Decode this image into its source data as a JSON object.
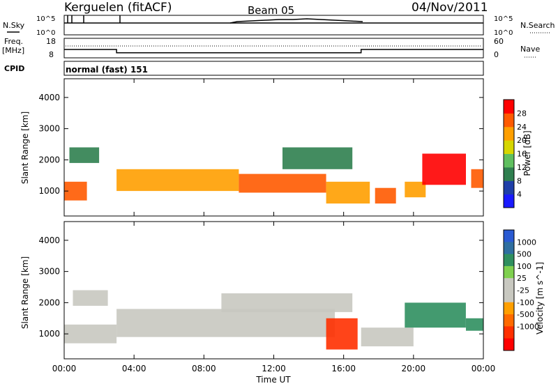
{
  "header": {
    "station": "Kerguelen (fitACF)",
    "beam": "Beam 05",
    "date": "04/Nov/2011"
  },
  "top_panels": {
    "nsky_label": "N.Sky",
    "nsky_ticks": [
      "10^5",
      "10^0"
    ],
    "nsearch_label": "N.Search",
    "nsearch_ticks": [
      "10^5",
      "10^0"
    ],
    "freq_label_1": "Freq.",
    "freq_label_2": "[MHz]",
    "freq_ticks": [
      "18",
      "8"
    ],
    "nave_label": "Nave",
    "nave_ticks": [
      "60",
      "0"
    ],
    "cpid_label": "CPID",
    "cpid_value": "normal (fast) 151",
    "freq_series": {
      "x": [
        0,
        3,
        3,
        17,
        17,
        24
      ],
      "y": [
        12.3,
        12.3,
        10.6,
        10.6,
        12.3,
        12.3
      ]
    }
  },
  "colors": {
    "power_scale": [
      "#1a1aff",
      "#1f3fa8",
      "#2f7f4f",
      "#5fbf5f",
      "#d6d600",
      "#ff9f00",
      "#ff5a00",
      "#ff0000"
    ],
    "velocity_scale": [
      "#2a5ad2",
      "#2f6fa0",
      "#2f8f5f",
      "#7fd04f",
      "#c8c8c0",
      "#c8c8c0",
      "#ff9f00",
      "#ff6a00",
      "#ff3000",
      "#ff0000"
    ]
  },
  "chart_data": [
    {
      "type": "heatmap",
      "title": "Power",
      "ylabel": "Slant Range [km]",
      "xlabel": "Time UT",
      "x_ticks": [
        "00:00",
        "04:00",
        "08:00",
        "12:00",
        "16:00",
        "20:00",
        "00:00"
      ],
      "y_ticks": [
        "1000",
        "2000",
        "3000",
        "4000"
      ],
      "ylim": [
        200,
        4600
      ],
      "colorbar": {
        "label": "Power [dB]",
        "ticks": [
          "4",
          "8",
          "12",
          "16",
          "20",
          "24",
          "28"
        ],
        "range": [
          0,
          32
        ]
      },
      "regions": [
        {
          "t0": 0.0,
          "t1": 1.3,
          "r0": 700,
          "r1": 1300,
          "power": 27
        },
        {
          "t0": 0.3,
          "t1": 2.0,
          "r0": 1900,
          "r1": 2400,
          "power": 10
        },
        {
          "t0": 3.0,
          "t1": 10.0,
          "r0": 1000,
          "r1": 1700,
          "power": 20
        },
        {
          "t0": 10.0,
          "t1": 15.0,
          "r0": 950,
          "r1": 1550,
          "power": 26
        },
        {
          "t0": 12.5,
          "t1": 16.5,
          "r0": 1700,
          "r1": 2400,
          "power": 8
        },
        {
          "t0": 15.0,
          "t1": 17.5,
          "r0": 600,
          "r1": 1300,
          "power": 22
        },
        {
          "t0": 17.8,
          "t1": 19.0,
          "r0": 600,
          "r1": 1100,
          "power": 24
        },
        {
          "t0": 19.5,
          "t1": 20.7,
          "r0": 800,
          "r1": 1300,
          "power": 20
        },
        {
          "t0": 20.5,
          "t1": 23.0,
          "r0": 1200,
          "r1": 2200,
          "power": 28
        },
        {
          "t0": 23.3,
          "t1": 24.0,
          "r0": 1100,
          "r1": 1700,
          "power": 24
        }
      ]
    },
    {
      "type": "heatmap",
      "title": "Velocity",
      "ylabel": "Slant Range [km]",
      "xlabel": "Time UT",
      "x_ticks": [
        "00:00",
        "04:00",
        "08:00",
        "12:00",
        "16:00",
        "20:00",
        "00:00"
      ],
      "y_ticks": [
        "1000",
        "2000",
        "3000",
        "4000"
      ],
      "ylim": [
        200,
        4600
      ],
      "colorbar": {
        "label": "Velocity [m s^-1]",
        "ticks": [
          "1000",
          "500",
          "100",
          "25",
          "-25",
          "-100",
          "-500",
          "-1000"
        ]
      },
      "regions": [
        {
          "t0": 0.0,
          "t1": 3.0,
          "r0": 700,
          "r1": 1300,
          "velocity": 0
        },
        {
          "t0": 0.5,
          "t1": 2.5,
          "r0": 1900,
          "r1": 2400,
          "velocity": 0
        },
        {
          "t0": 3.0,
          "t1": 15.5,
          "r0": 900,
          "r1": 1800,
          "velocity": 0
        },
        {
          "t0": 9.0,
          "t1": 16.5,
          "r0": 1700,
          "r1": 2300,
          "velocity": 0
        },
        {
          "t0": 15.0,
          "t1": 16.8,
          "r0": 500,
          "r1": 1500,
          "velocity": -400
        },
        {
          "t0": 17.0,
          "t1": 20.0,
          "r0": 600,
          "r1": 1200,
          "velocity": 0
        },
        {
          "t0": 19.5,
          "t1": 23.0,
          "r0": 1200,
          "r1": 2000,
          "velocity": 300
        },
        {
          "t0": 23.0,
          "t1": 24.0,
          "r0": 1100,
          "r1": 1500,
          "velocity": 200
        }
      ]
    }
  ]
}
